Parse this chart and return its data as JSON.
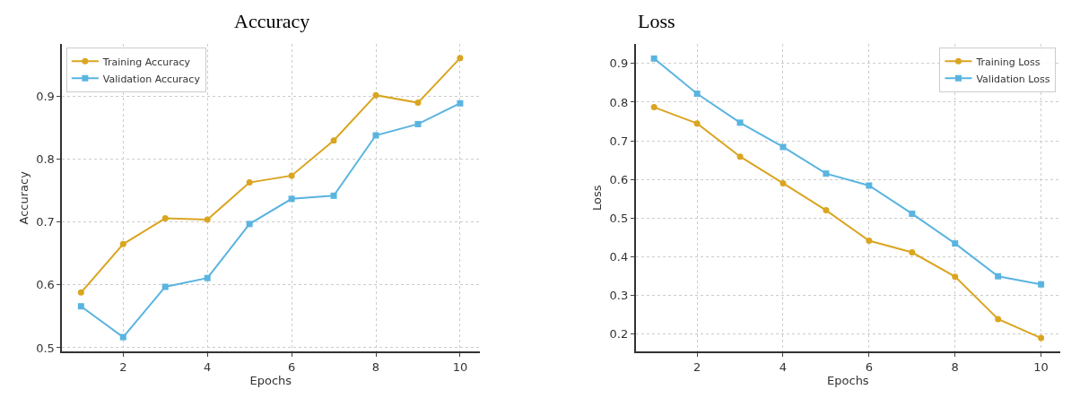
{
  "chart_data": [
    {
      "type": "line",
      "title": "Accuracy",
      "xlabel": "Epochs",
      "ylabel": "Accuracy",
      "x": [
        1,
        2,
        3,
        4,
        5,
        6,
        7,
        8,
        9,
        10
      ],
      "xlim": [
        0.55,
        10.46
      ],
      "xticks": [
        2,
        4,
        6,
        8,
        10
      ],
      "ylim": [
        0.494,
        0.983
      ],
      "yticks": [
        0.5,
        0.6,
        0.7,
        0.8,
        0.9
      ],
      "grid": true,
      "legend": "top left",
      "line_style": "solid",
      "series": [
        {
          "name": "Training Accuracy",
          "color": "#daa520",
          "marker": "circle",
          "values": [
            0.588,
            0.665,
            0.706,
            0.704,
            0.763,
            0.774,
            0.83,
            0.902,
            0.89,
            0.961
          ]
        },
        {
          "name": "Validation Accuracy",
          "color": "#5ab4e0",
          "marker": "square",
          "values": [
            0.566,
            0.517,
            0.597,
            0.611,
            0.697,
            0.737,
            0.742,
            0.838,
            0.856,
            0.889
          ]
        }
      ]
    },
    {
      "type": "line",
      "title": "Loss",
      "xlabel": "Epochs",
      "ylabel": "Loss",
      "x": [
        1,
        2,
        3,
        4,
        5,
        6,
        7,
        8,
        9,
        10
      ],
      "xlim": [
        0.57,
        10.45
      ],
      "xticks": [
        2,
        4,
        6,
        8,
        10
      ],
      "ylim": [
        0.154,
        0.95
      ],
      "yticks": [
        0.2,
        0.3,
        0.4,
        0.5,
        0.6,
        0.7,
        0.8,
        0.9
      ],
      "grid": true,
      "legend": "top right",
      "line_style": "solid",
      "series": [
        {
          "name": "Training Loss",
          "color": "#daa520",
          "marker": "circle",
          "values": [
            0.787,
            0.745,
            0.659,
            0.59,
            0.52,
            0.441,
            0.411,
            0.348,
            0.238,
            0.189
          ]
        },
        {
          "name": "Validation Loss",
          "color": "#5ab4e0",
          "marker": "square",
          "values": [
            0.913,
            0.822,
            0.747,
            0.684,
            0.615,
            0.584,
            0.511,
            0.434,
            0.349,
            0.328
          ]
        }
      ]
    }
  ]
}
